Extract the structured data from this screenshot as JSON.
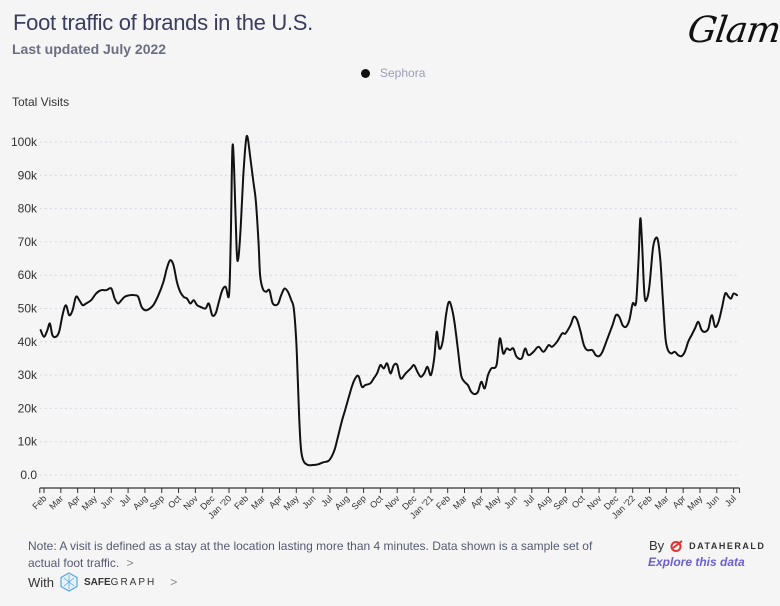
{
  "header": {
    "title": "Foot traffic of brands in the U.S.",
    "subtitle": "Last updated July 2022",
    "brand_logo": "Glam"
  },
  "legend": {
    "items": [
      {
        "label": "Sephora",
        "color": "#111111"
      }
    ]
  },
  "footer": {
    "note": "Note: A visit is defined as a stay at the location lasting more than 4 minutes. Data shown is a sample set of actual foot traffic.",
    "note_chevron": ">",
    "with_label": "With",
    "safegraph_bold": "SAFE",
    "safegraph_rest": "GRAPH",
    "safegraph_chevron": ">",
    "by_label": "By",
    "dataherald": "DATAHERALD",
    "explore_link": "Explore this data"
  },
  "chart_data": {
    "type": "line",
    "title": "Foot traffic of brands in the U.S.",
    "subtitle": "Last updated July 2022",
    "xlabel": "",
    "ylabel": "Total Visits",
    "ylim": [
      0,
      100000
    ],
    "yticks": [
      0,
      10000,
      20000,
      30000,
      40000,
      50000,
      60000,
      70000,
      80000,
      90000,
      100000
    ],
    "ytick_labels": [
      "0.0",
      "10k",
      "20k",
      "30k",
      "40k",
      "50k",
      "60k",
      "70k",
      "80k",
      "90k",
      "100k"
    ],
    "xtick_labels": [
      "Feb",
      "Mar",
      "Apr",
      "May",
      "Jun",
      "Jul",
      "Aug",
      "Sep",
      "Oct",
      "Nov",
      "Dec",
      "Jan '20",
      "Feb",
      "Mar",
      "Apr",
      "May",
      "Jun",
      "Jul",
      "Aug",
      "Sep",
      "Oct",
      "Nov",
      "Dec",
      "Jan '21",
      "Feb",
      "Mar",
      "Apr",
      "May",
      "Jun",
      "Jul",
      "Aug",
      "Sep",
      "Oct",
      "Nov",
      "Dec",
      "Jan '22",
      "Feb",
      "Mar",
      "Apr",
      "May",
      "Jun",
      "Jul"
    ],
    "x_unit": "months since 2019-02-01",
    "xlim": [
      -0.25,
      41.35
    ],
    "grid": "horizontal-dotted",
    "legend_position": "top-center",
    "series": [
      {
        "name": "Sephora",
        "color": "#111111",
        "points": [
          [
            -0.2,
            43.5
          ],
          [
            0.0,
            41.5
          ],
          [
            0.2,
            43.5
          ],
          [
            0.35,
            45.5
          ],
          [
            0.5,
            42
          ],
          [
            0.7,
            41.5
          ],
          [
            0.9,
            43
          ],
          [
            1.1,
            48
          ],
          [
            1.3,
            51
          ],
          [
            1.5,
            48
          ],
          [
            1.7,
            49.5
          ],
          [
            1.9,
            53.5
          ],
          [
            2.1,
            52.5
          ],
          [
            2.3,
            51
          ],
          [
            2.5,
            51.5
          ],
          [
            2.8,
            52.5
          ],
          [
            3.1,
            54.5
          ],
          [
            3.4,
            55.5
          ],
          [
            3.7,
            55.5
          ],
          [
            4.0,
            56
          ],
          [
            4.2,
            53
          ],
          [
            4.4,
            51.5
          ],
          [
            4.6,
            52.5
          ],
          [
            4.8,
            53.5
          ],
          [
            5.1,
            54
          ],
          [
            5.4,
            54
          ],
          [
            5.6,
            53.5
          ],
          [
            5.8,
            50.5
          ],
          [
            6.0,
            49.5
          ],
          [
            6.2,
            49.7
          ],
          [
            6.5,
            51
          ],
          [
            6.8,
            54
          ],
          [
            7.1,
            58
          ],
          [
            7.3,
            62
          ],
          [
            7.5,
            64.5
          ],
          [
            7.7,
            63
          ],
          [
            7.9,
            58
          ],
          [
            8.1,
            55
          ],
          [
            8.3,
            53.5
          ],
          [
            8.5,
            53
          ],
          [
            8.7,
            51.5
          ],
          [
            8.9,
            52.5
          ],
          [
            9.1,
            51
          ],
          [
            9.3,
            50.5
          ],
          [
            9.6,
            50
          ],
          [
            9.8,
            51.5
          ],
          [
            10.0,
            48
          ],
          [
            10.2,
            48.5
          ],
          [
            10.4,
            52
          ],
          [
            10.6,
            55.5
          ],
          [
            10.8,
            56.5
          ],
          [
            11.0,
            54
          ],
          [
            11.1,
            70
          ],
          [
            11.2,
            98
          ],
          [
            11.3,
            92
          ],
          [
            11.45,
            68
          ],
          [
            11.55,
            65
          ],
          [
            11.7,
            75
          ],
          [
            11.85,
            90
          ],
          [
            12.0,
            100
          ],
          [
            12.1,
            101.5
          ],
          [
            12.25,
            96
          ],
          [
            12.45,
            88
          ],
          [
            12.6,
            82
          ],
          [
            12.75,
            70
          ],
          [
            12.85,
            60
          ],
          [
            13.0,
            56
          ],
          [
            13.2,
            55
          ],
          [
            13.4,
            55.5
          ],
          [
            13.6,
            51.5
          ],
          [
            13.9,
            51.3
          ],
          [
            14.1,
            54
          ],
          [
            14.3,
            56
          ],
          [
            14.5,
            55
          ],
          [
            14.7,
            52.5
          ],
          [
            14.85,
            50
          ],
          [
            15.0,
            40
          ],
          [
            15.1,
            27
          ],
          [
            15.2,
            14
          ],
          [
            15.3,
            7
          ],
          [
            15.45,
            4
          ],
          [
            15.7,
            3
          ],
          [
            16.0,
            3
          ],
          [
            16.3,
            3.2
          ],
          [
            16.6,
            3.8
          ],
          [
            16.9,
            4.2
          ],
          [
            17.1,
            5.5
          ],
          [
            17.3,
            8
          ],
          [
            17.5,
            12
          ],
          [
            17.7,
            16
          ],
          [
            17.9,
            19.5
          ],
          [
            18.1,
            23
          ],
          [
            18.3,
            26.5
          ],
          [
            18.5,
            29
          ],
          [
            18.7,
            29.7
          ],
          [
            18.9,
            26.5
          ],
          [
            19.1,
            27
          ],
          [
            19.4,
            27.5
          ],
          [
            19.6,
            29
          ],
          [
            19.8,
            30.5
          ],
          [
            20.0,
            33
          ],
          [
            20.2,
            32
          ],
          [
            20.4,
            33.5
          ],
          [
            20.6,
            30.5
          ],
          [
            20.8,
            33
          ],
          [
            21.0,
            33
          ],
          [
            21.2,
            29
          ],
          [
            21.5,
            30.5
          ],
          [
            21.8,
            32
          ],
          [
            22.0,
            33
          ],
          [
            22.2,
            31
          ],
          [
            22.4,
            29.5
          ],
          [
            22.6,
            30.5
          ],
          [
            22.8,
            32.5
          ],
          [
            23.0,
            30
          ],
          [
            23.2,
            35
          ],
          [
            23.35,
            43
          ],
          [
            23.5,
            38
          ],
          [
            23.7,
            40
          ],
          [
            23.9,
            48
          ],
          [
            24.05,
            51.8
          ],
          [
            24.2,
            51
          ],
          [
            24.4,
            46
          ],
          [
            24.6,
            38
          ],
          [
            24.8,
            30
          ],
          [
            25.0,
            28
          ],
          [
            25.2,
            27
          ],
          [
            25.4,
            25
          ],
          [
            25.6,
            24.3
          ],
          [
            25.8,
            25
          ],
          [
            26.0,
            28
          ],
          [
            26.2,
            26
          ],
          [
            26.4,
            30
          ],
          [
            26.6,
            32
          ],
          [
            26.9,
            33
          ],
          [
            27.1,
            41
          ],
          [
            27.3,
            36.5
          ],
          [
            27.5,
            38
          ],
          [
            27.7,
            37.5
          ],
          [
            27.9,
            38
          ],
          [
            28.1,
            35.5
          ],
          [
            28.4,
            35
          ],
          [
            28.6,
            38
          ],
          [
            28.8,
            36
          ],
          [
            29.1,
            37
          ],
          [
            29.4,
            38.5
          ],
          [
            29.7,
            37
          ],
          [
            30.0,
            39
          ],
          [
            30.2,
            38.5
          ],
          [
            30.5,
            40
          ],
          [
            30.8,
            42.5
          ],
          [
            31.0,
            42.5
          ],
          [
            31.3,
            45
          ],
          [
            31.5,
            47.5
          ],
          [
            31.7,
            46.5
          ],
          [
            31.9,
            43
          ],
          [
            32.1,
            39
          ],
          [
            32.3,
            37.5
          ],
          [
            32.6,
            37.5
          ],
          [
            32.8,
            36
          ],
          [
            33.0,
            35.7
          ],
          [
            33.2,
            37
          ],
          [
            33.5,
            41
          ],
          [
            33.8,
            45
          ],
          [
            34.0,
            48
          ],
          [
            34.2,
            47.5
          ],
          [
            34.4,
            45
          ],
          [
            34.6,
            44.5
          ],
          [
            34.8,
            46.5
          ],
          [
            35.0,
            51.5
          ],
          [
            35.2,
            51.8
          ],
          [
            35.35,
            65
          ],
          [
            35.45,
            77
          ],
          [
            35.55,
            70
          ],
          [
            35.7,
            54
          ],
          [
            35.85,
            53
          ],
          [
            36.0,
            57
          ],
          [
            36.2,
            68
          ],
          [
            36.35,
            71
          ],
          [
            36.5,
            70.5
          ],
          [
            36.65,
            64
          ],
          [
            36.8,
            52
          ],
          [
            36.95,
            41
          ],
          [
            37.1,
            37.5
          ],
          [
            37.3,
            36.5
          ],
          [
            37.5,
            37
          ],
          [
            37.7,
            36
          ],
          [
            37.9,
            35.7
          ],
          [
            38.1,
            37
          ],
          [
            38.3,
            40
          ],
          [
            38.5,
            42
          ],
          [
            38.7,
            44
          ],
          [
            38.9,
            46
          ],
          [
            39.1,
            43.5
          ],
          [
            39.3,
            43
          ],
          [
            39.5,
            44
          ],
          [
            39.7,
            48
          ],
          [
            39.9,
            44.5
          ],
          [
            40.1,
            46
          ],
          [
            40.3,
            50
          ],
          [
            40.5,
            54.5
          ],
          [
            40.7,
            53.5
          ],
          [
            40.85,
            53
          ],
          [
            41.0,
            54.5
          ],
          [
            41.2,
            54
          ]
        ]
      }
    ]
  }
}
